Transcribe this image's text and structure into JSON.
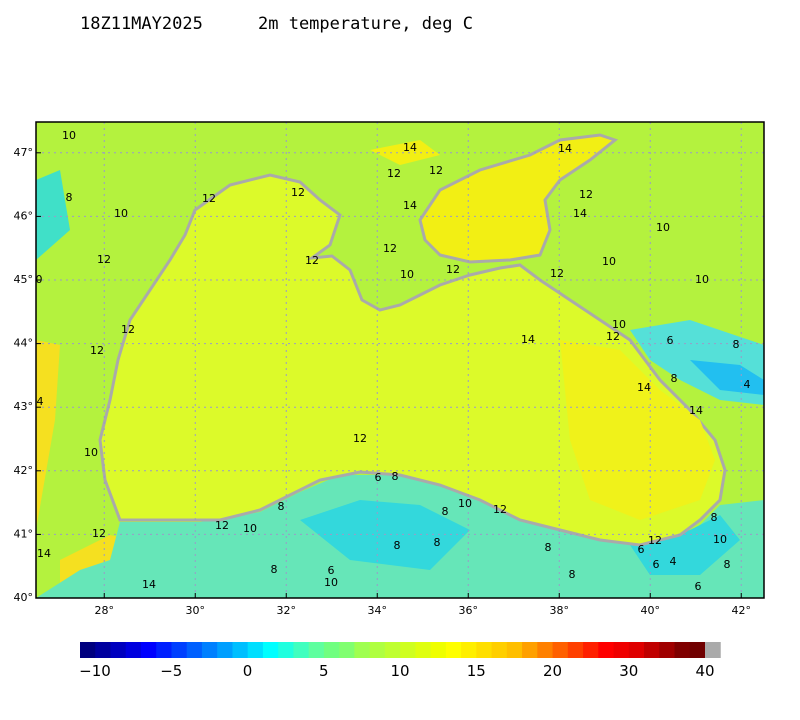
{
  "header": {
    "time": "18Z11MAY2025",
    "field": "2m temperature, deg C"
  },
  "map": {
    "lon_ticks": [
      {
        "value": 28,
        "label": "28°"
      },
      {
        "value": 30,
        "label": "30°"
      },
      {
        "value": 32,
        "label": "32°"
      },
      {
        "value": 34,
        "label": "34°"
      },
      {
        "value": 36,
        "label": "36°"
      },
      {
        "value": 38,
        "label": "38°"
      },
      {
        "value": 40,
        "label": "40°"
      },
      {
        "value": 42,
        "label": "42°"
      }
    ],
    "lat_ticks": [
      {
        "value": 40,
        "label": "40°"
      },
      {
        "value": 41,
        "label": "41°"
      },
      {
        "value": 42,
        "label": "42°"
      },
      {
        "value": 43,
        "label": "43°"
      },
      {
        "value": 44,
        "label": "44°"
      },
      {
        "value": 45,
        "label": "45°"
      },
      {
        "value": 46,
        "label": "46°"
      },
      {
        "value": 47,
        "label": "47°"
      }
    ],
    "contour_labels": [
      "10",
      "8",
      "10",
      "12",
      "12",
      "14",
      "12",
      "12",
      "14",
      "14",
      "12",
      "14",
      "10",
      "12",
      "12",
      "12",
      "10",
      "12",
      "12",
      "10",
      "10",
      "12",
      "12",
      "14",
      "10",
      "12",
      "6",
      "8",
      "8",
      "14",
      "4",
      "14",
      "12",
      "10",
      "6",
      "8",
      "10",
      "12",
      "8",
      "8",
      "12",
      "10",
      "12",
      "8",
      "10",
      "14",
      "8",
      "8",
      "8",
      "6",
      "12",
      "6",
      "4",
      "8",
      "8",
      "6",
      "10",
      "8",
      "14",
      "6",
      "0",
      "4"
    ]
  },
  "colorbar": {
    "labels": [
      "−10",
      "−5",
      "0",
      "5",
      "10",
      "15",
      "20",
      "30",
      "40"
    ],
    "colors": [
      "#00007f",
      "#00009f",
      "#0000bf",
      "#0000df",
      "#0000ff",
      "#0020ff",
      "#0040ff",
      "#0060ff",
      "#0080ff",
      "#009fff",
      "#00bfff",
      "#00dfff",
      "#00ffff",
      "#20ffdf",
      "#40ffbf",
      "#5fff9f",
      "#70ff80",
      "#80ff70",
      "#9fff50",
      "#afff40",
      "#bfff30",
      "#cfff20",
      "#dfff10",
      "#efff00",
      "#ffff00",
      "#ffef00",
      "#ffdf00",
      "#ffcf00",
      "#ffbf00",
      "#ffa000",
      "#ff8000",
      "#ff6000",
      "#ff4000",
      "#ff2000",
      "#ff0000",
      "#ef0000",
      "#df0000",
      "#c00000",
      "#a00000",
      "#800000",
      "#700000",
      "#aaaaaa"
    ]
  }
}
